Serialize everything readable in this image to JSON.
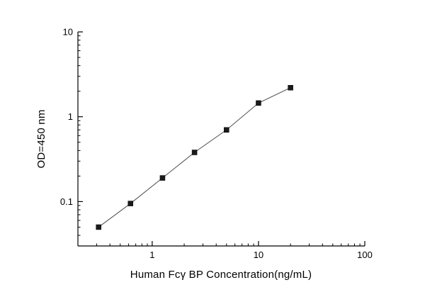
{
  "figure": {
    "background": "#ffffff"
  },
  "chart_data": {
    "type": "line",
    "subtype": "scatter-line standard curve",
    "x": [
      0.313,
      0.625,
      1.25,
      2.5,
      5,
      10,
      20
    ],
    "y": [
      0.05,
      0.095,
      0.19,
      0.38,
      0.7,
      1.45,
      2.2
    ],
    "title": "",
    "xlabel": "Human Fcγ BP Concentration(ng/mL)",
    "ylabel": "OD=450 nm",
    "xscale": "log",
    "yscale": "log",
    "xlim": [
      0.2,
      100
    ],
    "ylim": [
      0.03,
      10
    ],
    "x_tick_values": [
      1,
      10,
      100
    ],
    "x_tick_labels": [
      "1",
      "10",
      "100"
    ],
    "y_tick_values": [
      0.1,
      1,
      10
    ],
    "y_tick_labels": [
      "0.1",
      "1",
      "10"
    ],
    "grid": false,
    "legend_position": "none",
    "marker": "square",
    "marker_color": "#1a1a1a",
    "line_color": "#4d4d4d",
    "axis_color": "#000000"
  }
}
